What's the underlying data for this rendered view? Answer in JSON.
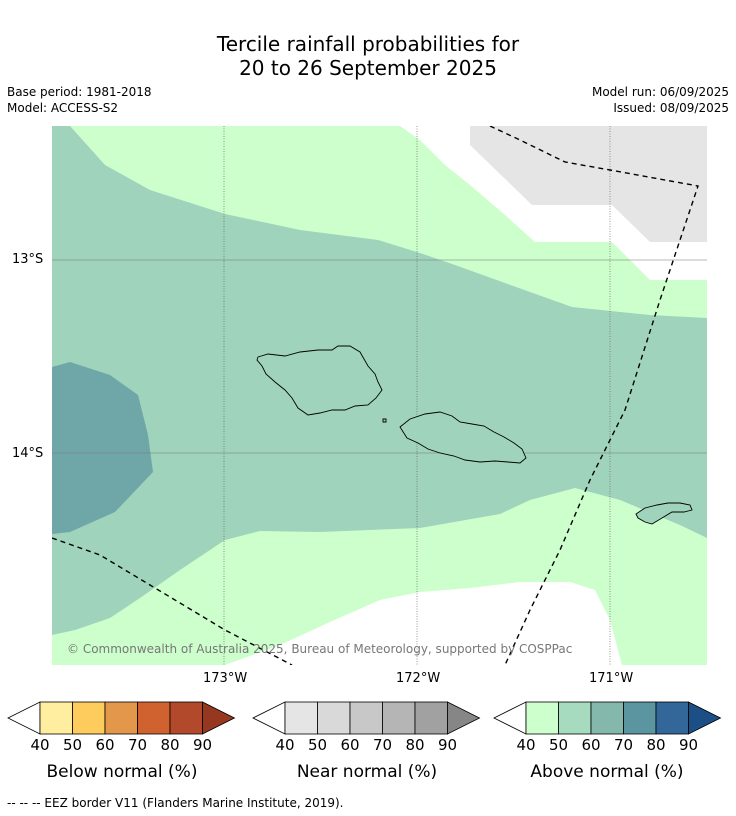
{
  "title": {
    "line1": "Tercile rainfall probabilities for",
    "line2": "20 to 26 September 2025"
  },
  "meta": {
    "base_period": "Base period: 1981-2018",
    "model": "Model: ACCESS-S2",
    "model_run": "Model run: 06/09/2025",
    "issued": "Issued: 08/09/2025"
  },
  "map": {
    "lat_labels": [
      "13°S",
      "14°S"
    ],
    "lon_labels": [
      "173°W",
      "172°W",
      "171°W"
    ],
    "copyright": "© Commonwealth of Australia 2025, Bureau of Meteorology, supported by COSPPac",
    "colors": {
      "above_40": "#ccffcc",
      "above_50": "#9fd3bc",
      "above_60": "#6fa6a8",
      "near_40": "#e5e5e5"
    }
  },
  "legends": [
    {
      "label": "Below normal (%)",
      "ticks": [
        "40",
        "50",
        "60",
        "70",
        "80",
        "90"
      ],
      "colors": [
        "#ffeda0",
        "#fecc5c",
        "#e2974a",
        "#d0622f",
        "#b2492a",
        "#963820"
      ]
    },
    {
      "label": "Near normal (%)",
      "ticks": [
        "40",
        "50",
        "60",
        "70",
        "80",
        "90"
      ],
      "colors": [
        "#e5e5e5",
        "#d9d9d9",
        "#c8c8c8",
        "#b5b5b5",
        "#a1a1a1",
        "#868686"
      ]
    },
    {
      "label": "Above normal (%)",
      "ticks": [
        "40",
        "50",
        "60",
        "70",
        "80",
        "90"
      ],
      "colors": [
        "#ccffcc",
        "#a6dbbf",
        "#84b8ad",
        "#5b96a0",
        "#336699",
        "#1d4f87"
      ]
    }
  ],
  "footnote": "--  --  -- EEZ border V11 (Flanders Marine Institute, 2019)."
}
